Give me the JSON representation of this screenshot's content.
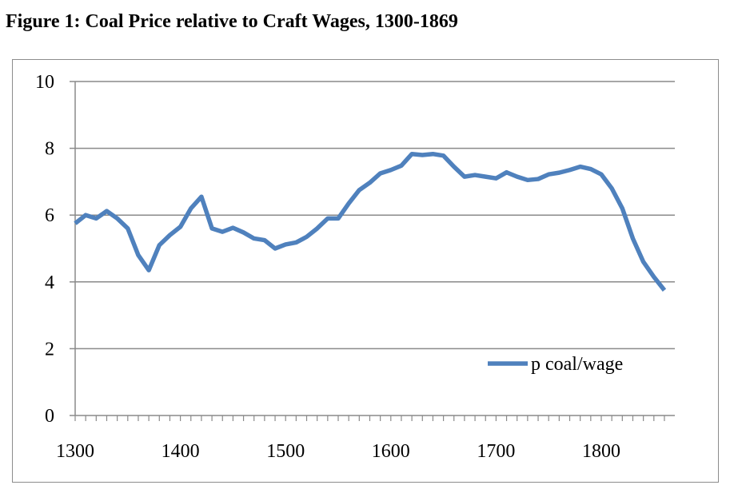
{
  "figure_title": "Figure 1: Coal Price relative to Craft Wages, 1300-1869",
  "chart_data": {
    "type": "line",
    "title": "Figure 1: Coal Price relative to Craft Wages, 1300-1869",
    "xlabel": "",
    "ylabel": "",
    "xlim": [
      1300,
      1870
    ],
    "ylim": [
      0,
      10
    ],
    "x_ticks": [
      1300,
      1400,
      1500,
      1600,
      1700,
      1800
    ],
    "y_ticks": [
      0,
      2,
      4,
      6,
      8,
      10
    ],
    "grid": "horizontal",
    "legend_position": "right, lower-middle",
    "series": [
      {
        "name": "p coal/wage",
        "color": "#4f81bd",
        "x": [
          1300,
          1310,
          1320,
          1330,
          1340,
          1350,
          1360,
          1370,
          1380,
          1390,
          1400,
          1410,
          1420,
          1430,
          1440,
          1450,
          1460,
          1470,
          1480,
          1490,
          1500,
          1510,
          1520,
          1530,
          1540,
          1550,
          1560,
          1570,
          1580,
          1590,
          1600,
          1610,
          1620,
          1630,
          1640,
          1650,
          1660,
          1670,
          1680,
          1690,
          1700,
          1710,
          1720,
          1730,
          1740,
          1750,
          1760,
          1770,
          1780,
          1790,
          1800,
          1810,
          1820,
          1830,
          1840,
          1850,
          1860
        ],
        "y": [
          5.75,
          6.0,
          5.9,
          6.12,
          5.9,
          5.6,
          4.8,
          4.35,
          5.1,
          5.4,
          5.65,
          6.2,
          6.55,
          5.6,
          5.5,
          5.62,
          5.48,
          5.3,
          5.25,
          5.0,
          5.12,
          5.18,
          5.35,
          5.6,
          5.9,
          5.9,
          6.35,
          6.75,
          6.97,
          7.25,
          7.35,
          7.48,
          7.83,
          7.8,
          7.83,
          7.78,
          7.45,
          7.15,
          7.2,
          7.15,
          7.1,
          7.28,
          7.15,
          7.05,
          7.08,
          7.22,
          7.27,
          7.35,
          7.45,
          7.38,
          7.22,
          6.8,
          6.2,
          5.3,
          4.6,
          4.15,
          3.75
        ]
      }
    ]
  }
}
